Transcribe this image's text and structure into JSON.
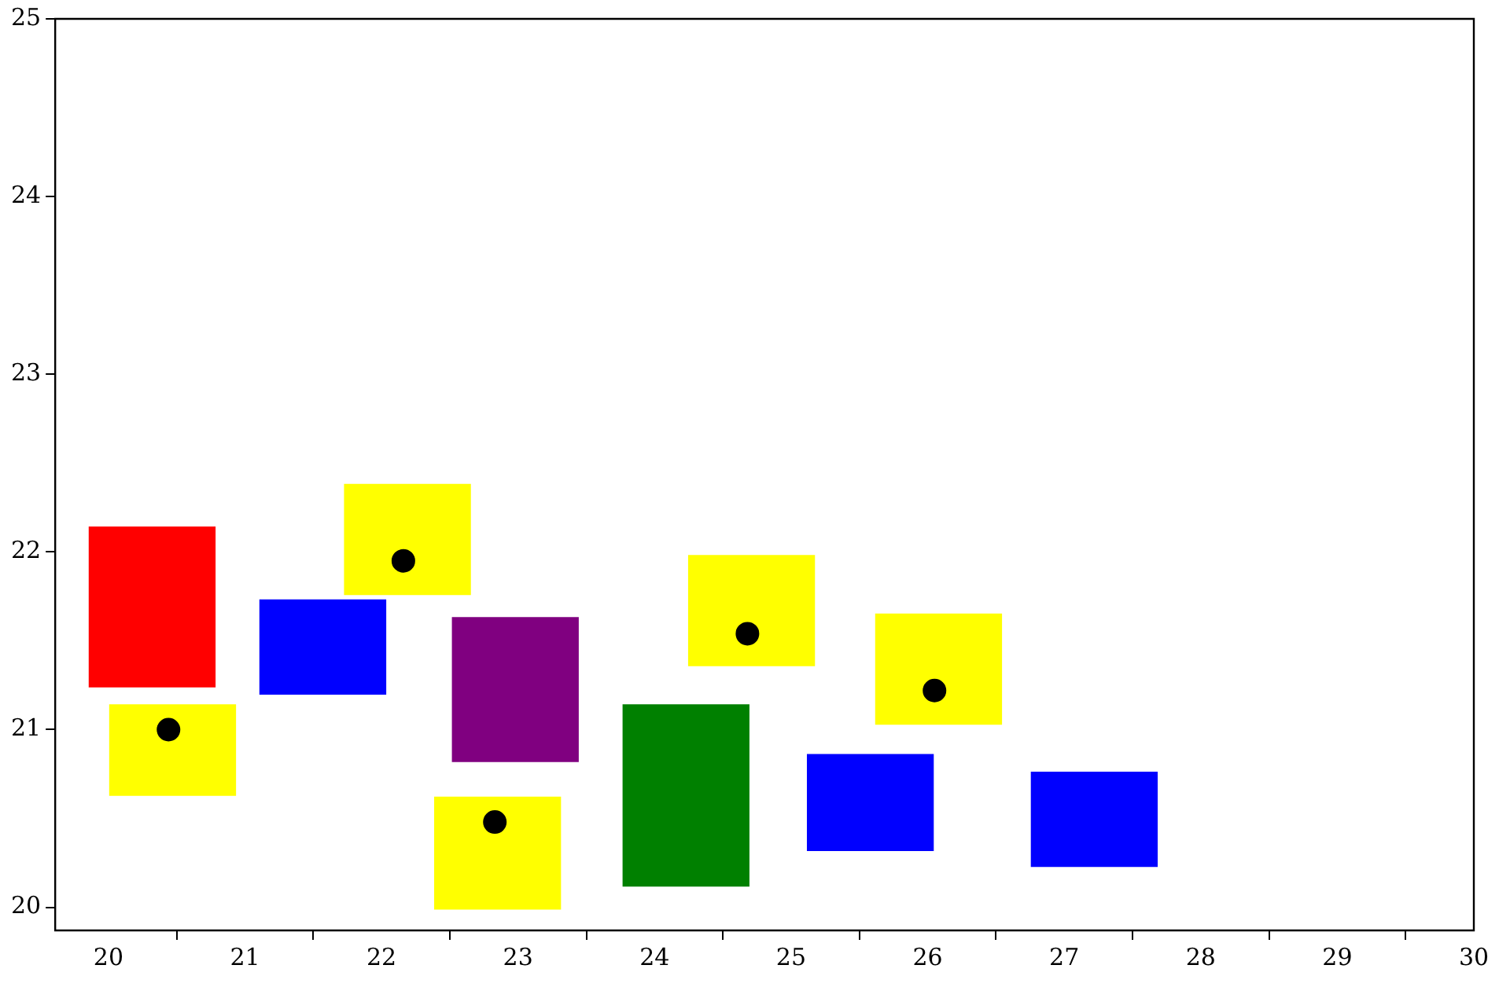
{
  "chart_data": {
    "type": "bar",
    "xlim": [
      19.61,
      30
    ],
    "ylim": [
      19.87,
      25
    ],
    "xticks": [
      20,
      21,
      22,
      23,
      24,
      25,
      26,
      27,
      28,
      29,
      30
    ],
    "yticks": [
      20,
      21,
      22,
      23,
      24,
      25
    ],
    "grid": false,
    "legend": false,
    "series": [
      {
        "type": "bar",
        "color": "#ff0000",
        "x": [
          20.32
        ],
        "base": [
          21.24
        ],
        "values": [
          0.9
        ]
      },
      {
        "type": "bar",
        "color": "#ffff00",
        "x": [
          20.47,
          22.19,
          22.85,
          24.71,
          26.08
        ],
        "base": [
          20.63,
          21.76,
          19.99,
          21.36,
          21.03
        ],
        "values": [
          0.51,
          0.62,
          0.63,
          0.62,
          0.62
        ]
      },
      {
        "type": "bar",
        "color": "#0000ff",
        "x": [
          21.57,
          25.58,
          27.22
        ],
        "base": [
          21.2,
          20.32,
          20.23
        ],
        "values": [
          0.53,
          0.54,
          0.53
        ]
      },
      {
        "type": "bar",
        "color": "#800080",
        "x": [
          22.98
        ],
        "base": [
          20.82
        ],
        "values": [
          0.81
        ]
      },
      {
        "type": "bar",
        "color": "#008000",
        "x": [
          24.23
        ],
        "base": [
          20.12
        ],
        "values": [
          1.02
        ]
      },
      {
        "type": "scatter",
        "color": "#000000",
        "marker": "circle",
        "x": [
          20.44,
          22.16,
          22.83,
          24.68,
          26.05
        ],
        "values": [
          21.0,
          21.95,
          20.48,
          21.54,
          21.22
        ]
      }
    ]
  }
}
